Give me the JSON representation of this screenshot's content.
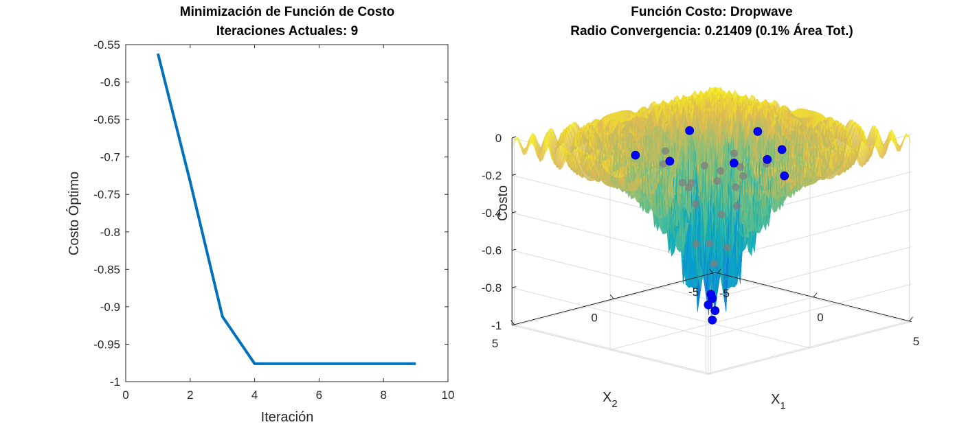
{
  "chart_data": [
    {
      "type": "line",
      "title": "Minimización de Función de Costo",
      "subtitle": "Iteraciones Actuales: 9",
      "xlabel": "Iteración",
      "ylabel": "Costo Óptimo",
      "xlim": [
        0,
        10
      ],
      "ylim": [
        -1,
        -0.55
      ],
      "xticks": [
        "0",
        "2",
        "4",
        "6",
        "8",
        "10"
      ],
      "yticks": [
        "-0.55",
        "-0.6",
        "-0.65",
        "-0.7",
        "-0.75",
        "-0.8",
        "-0.85",
        "-0.9",
        "-0.95",
        "-1"
      ],
      "grid": false,
      "series": [
        {
          "x": [
            1,
            2,
            3,
            4,
            5,
            6,
            7,
            8,
            9
          ],
          "values": [
            -0.562,
            -0.733,
            -0.913,
            -0.976,
            -0.976,
            -0.976,
            -0.976,
            -0.976,
            -0.976
          ],
          "color": "#0072BD"
        }
      ]
    },
    {
      "type": "surface",
      "title": "Función Costo: Dropwave",
      "subtitle": "Radio Convergencia: 0.21409 (0.1% Área Tot.)",
      "xlabel": "X",
      "xlabel_sub": "1",
      "ylabel": "X",
      "ylabel_sub": "2",
      "zlabel": "Costo",
      "xlim": [
        -5.12,
        5.12
      ],
      "ylim": [
        -5.12,
        5.12
      ],
      "zlim": [
        -1,
        0
      ],
      "xticks": [
        "-5",
        "0",
        "5"
      ],
      "yticks": [
        "-5",
        "0",
        "5"
      ],
      "zticks": [
        "0",
        "-0.2",
        "-0.4",
        "-0.6",
        "-0.8",
        "-1"
      ],
      "function": "dropwave",
      "colormap": "parula",
      "grid": true,
      "points": {
        "current_color": "#0000FF",
        "history_color": "#7f7f7f",
        "current": [
          [
            0.05,
            0.02,
            -0.98
          ],
          [
            0.12,
            -0.05,
            -0.93
          ],
          [
            -0.08,
            0.1,
            -0.9
          ],
          [
            0.15,
            0.12,
            -0.86
          ],
          [
            -0.14,
            -0.09,
            -0.85
          ],
          [
            2.4,
            1.2,
            -0.05
          ],
          [
            -1.6,
            2.3,
            -0.08
          ],
          [
            1.9,
            -1.7,
            -0.07
          ],
          [
            -2.3,
            -1.1,
            -0.06
          ],
          [
            0.5,
            2.6,
            -0.05
          ],
          [
            3.1,
            0.2,
            -0.04
          ],
          [
            -0.4,
            -2.7,
            -0.06
          ],
          [
            1.2,
            -2.5,
            -0.25
          ]
        ],
        "history": [
          [
            0.9,
            0.6,
            -0.2
          ],
          [
            -0.8,
            0.7,
            -0.25
          ],
          [
            0.7,
            -0.9,
            -0.22
          ],
          [
            -1.0,
            -0.6,
            -0.2
          ],
          [
            1.5,
            1.0,
            -0.12
          ],
          [
            -1.3,
            1.2,
            -0.15
          ],
          [
            0.4,
            0.5,
            -0.55
          ],
          [
            -0.5,
            0.3,
            -0.58
          ],
          [
            0.3,
            -0.5,
            -0.6
          ],
          [
            0.6,
            0.1,
            -0.4
          ],
          [
            -0.3,
            -0.4,
            -0.7
          ],
          [
            1.1,
            -0.2,
            -0.35
          ],
          [
            -1.1,
            0.1,
            -0.3
          ],
          [
            0.2,
            1.0,
            -0.33
          ],
          [
            0.1,
            -1.1,
            -0.3
          ],
          [
            2.0,
            0.5,
            -0.1
          ],
          [
            -2.0,
            0.4,
            -0.12
          ],
          [
            0.8,
            1.8,
            -0.18
          ],
          [
            -0.7,
            -1.8,
            -0.16
          ],
          [
            1.6,
            -1.2,
            -0.14
          ]
        ]
      }
    }
  ]
}
